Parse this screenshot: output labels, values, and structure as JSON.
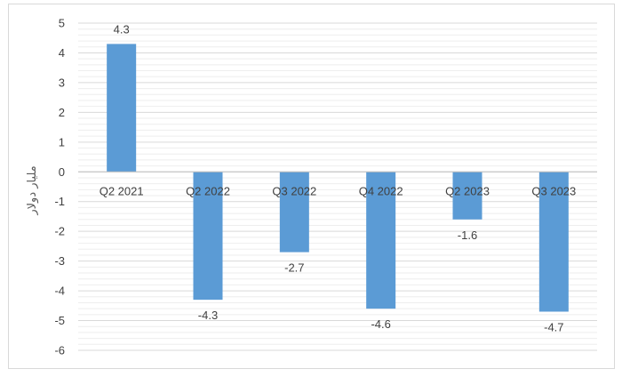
{
  "chart_data": {
    "type": "bar",
    "categories": [
      "Q2 2021",
      "Q2 2022",
      "Q3 2022",
      "Q4 2022",
      "Q2 2023",
      "Q3 2023"
    ],
    "values": [
      4.3,
      -4.3,
      -2.7,
      -4.6,
      -1.6,
      -4.7
    ],
    "data_labels": [
      "4.3",
      "-4.3",
      "-2.7",
      "-4.6",
      "-1.6",
      "-4.7"
    ],
    "ylabel": "مليار دولار",
    "ylim": [
      -6,
      5
    ],
    "yticks": [
      5,
      4,
      3,
      2,
      1,
      0,
      -1,
      -2,
      -3,
      -4,
      -5,
      -6
    ],
    "ytick_labels": [
      "5",
      "4",
      "3",
      "2",
      "1",
      "0",
      "-1",
      "-2",
      "-3",
      "-4",
      "-5",
      "-6"
    ],
    "grid": true,
    "legend": "none",
    "colors": {
      "bar": "#5b9bd5",
      "grid": "#d9d9d9",
      "axis": "#bfbfbf",
      "text": "#404040"
    }
  }
}
